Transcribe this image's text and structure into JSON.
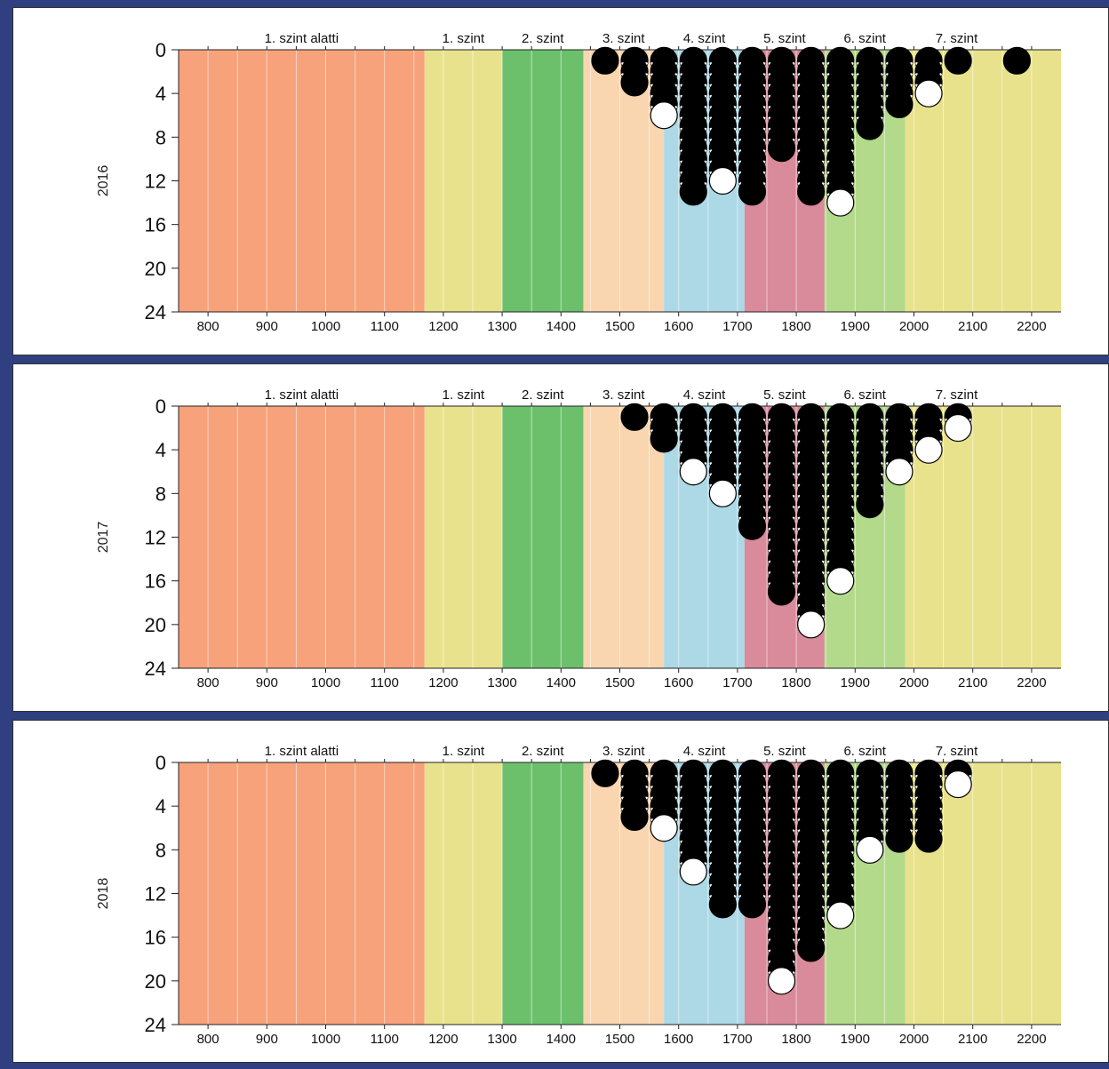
{
  "chart_data": {
    "type": "scatter",
    "x_ticks": [
      800,
      900,
      1000,
      1100,
      1200,
      1300,
      1400,
      1500,
      1600,
      1700,
      1800,
      1900,
      2000,
      2100,
      2200
    ],
    "y_ticks": [
      0,
      4,
      8,
      12,
      16,
      20,
      24
    ],
    "xlim": [
      750,
      2250
    ],
    "ylim": [
      0,
      24
    ],
    "y_inverted": true,
    "grid": true,
    "bands": [
      {
        "label": "1. szint alatti",
        "from": 750,
        "to": 1168,
        "color": "#f7a27a"
      },
      {
        "label": "1. szint",
        "from": 1168,
        "to": 1300,
        "color": "#e8e28c"
      },
      {
        "label": "2. szint",
        "from": 1300,
        "to": 1438,
        "color": "#6cc06c"
      },
      {
        "label": "3. szint",
        "from": 1438,
        "to": 1575,
        "color": "#f9d5b0"
      },
      {
        "label": "4. szint",
        "from": 1575,
        "to": 1712,
        "color": "#add8e6"
      },
      {
        "label": "5. szint",
        "from": 1712,
        "to": 1848,
        "color": "#d98b9b"
      },
      {
        "label": "6. szint",
        "from": 1848,
        "to": 1985,
        "color": "#b3d98a"
      },
      {
        "label": "7. szint",
        "from": 1985,
        "to": 2250,
        "color": "#e8e28c"
      }
    ],
    "panels": [
      {
        "year": "2016",
        "columns": [
          {
            "x": 1475,
            "count": 1,
            "last": "black"
          },
          {
            "x": 1525,
            "count": 3,
            "last": "black"
          },
          {
            "x": 1575,
            "count": 6,
            "last": "white"
          },
          {
            "x": 1625,
            "count": 13,
            "last": "black"
          },
          {
            "x": 1675,
            "count": 12,
            "last": "white"
          },
          {
            "x": 1725,
            "count": 13,
            "last": "black"
          },
          {
            "x": 1775,
            "count": 9,
            "last": "black"
          },
          {
            "x": 1825,
            "count": 13,
            "last": "black"
          },
          {
            "x": 1875,
            "count": 14,
            "last": "white"
          },
          {
            "x": 1925,
            "count": 7,
            "last": "black"
          },
          {
            "x": 1975,
            "count": 5,
            "last": "black"
          },
          {
            "x": 2025,
            "count": 4,
            "last": "white"
          },
          {
            "x": 2075,
            "count": 1,
            "last": "black"
          },
          {
            "x": 2175,
            "count": 1,
            "last": "black"
          }
        ]
      },
      {
        "year": "2017",
        "columns": [
          {
            "x": 1525,
            "count": 1,
            "last": "black"
          },
          {
            "x": 1575,
            "count": 3,
            "last": "black"
          },
          {
            "x": 1625,
            "count": 6,
            "last": "white"
          },
          {
            "x": 1675,
            "count": 8,
            "last": "white"
          },
          {
            "x": 1725,
            "count": 11,
            "last": "black"
          },
          {
            "x": 1775,
            "count": 17,
            "last": "black"
          },
          {
            "x": 1825,
            "count": 20,
            "last": "white"
          },
          {
            "x": 1875,
            "count": 16,
            "last": "white"
          },
          {
            "x": 1925,
            "count": 9,
            "last": "black"
          },
          {
            "x": 1975,
            "count": 6,
            "last": "white"
          },
          {
            "x": 2025,
            "count": 4,
            "last": "white"
          },
          {
            "x": 2075,
            "count": 2,
            "last": "white"
          }
        ]
      },
      {
        "year": "2018",
        "columns": [
          {
            "x": 1475,
            "count": 1,
            "last": "black"
          },
          {
            "x": 1525,
            "count": 5,
            "last": "black"
          },
          {
            "x": 1575,
            "count": 6,
            "last": "white"
          },
          {
            "x": 1625,
            "count": 10,
            "last": "white"
          },
          {
            "x": 1675,
            "count": 13,
            "last": "black"
          },
          {
            "x": 1725,
            "count": 13,
            "last": "black"
          },
          {
            "x": 1775,
            "count": 20,
            "last": "white"
          },
          {
            "x": 1825,
            "count": 17,
            "last": "black"
          },
          {
            "x": 1875,
            "count": 14,
            "last": "white"
          },
          {
            "x": 1925,
            "count": 8,
            "last": "white"
          },
          {
            "x": 1975,
            "count": 7,
            "last": "black"
          },
          {
            "x": 2025,
            "count": 7,
            "last": "black"
          },
          {
            "x": 2075,
            "count": 2,
            "last": "white"
          }
        ]
      }
    ]
  }
}
